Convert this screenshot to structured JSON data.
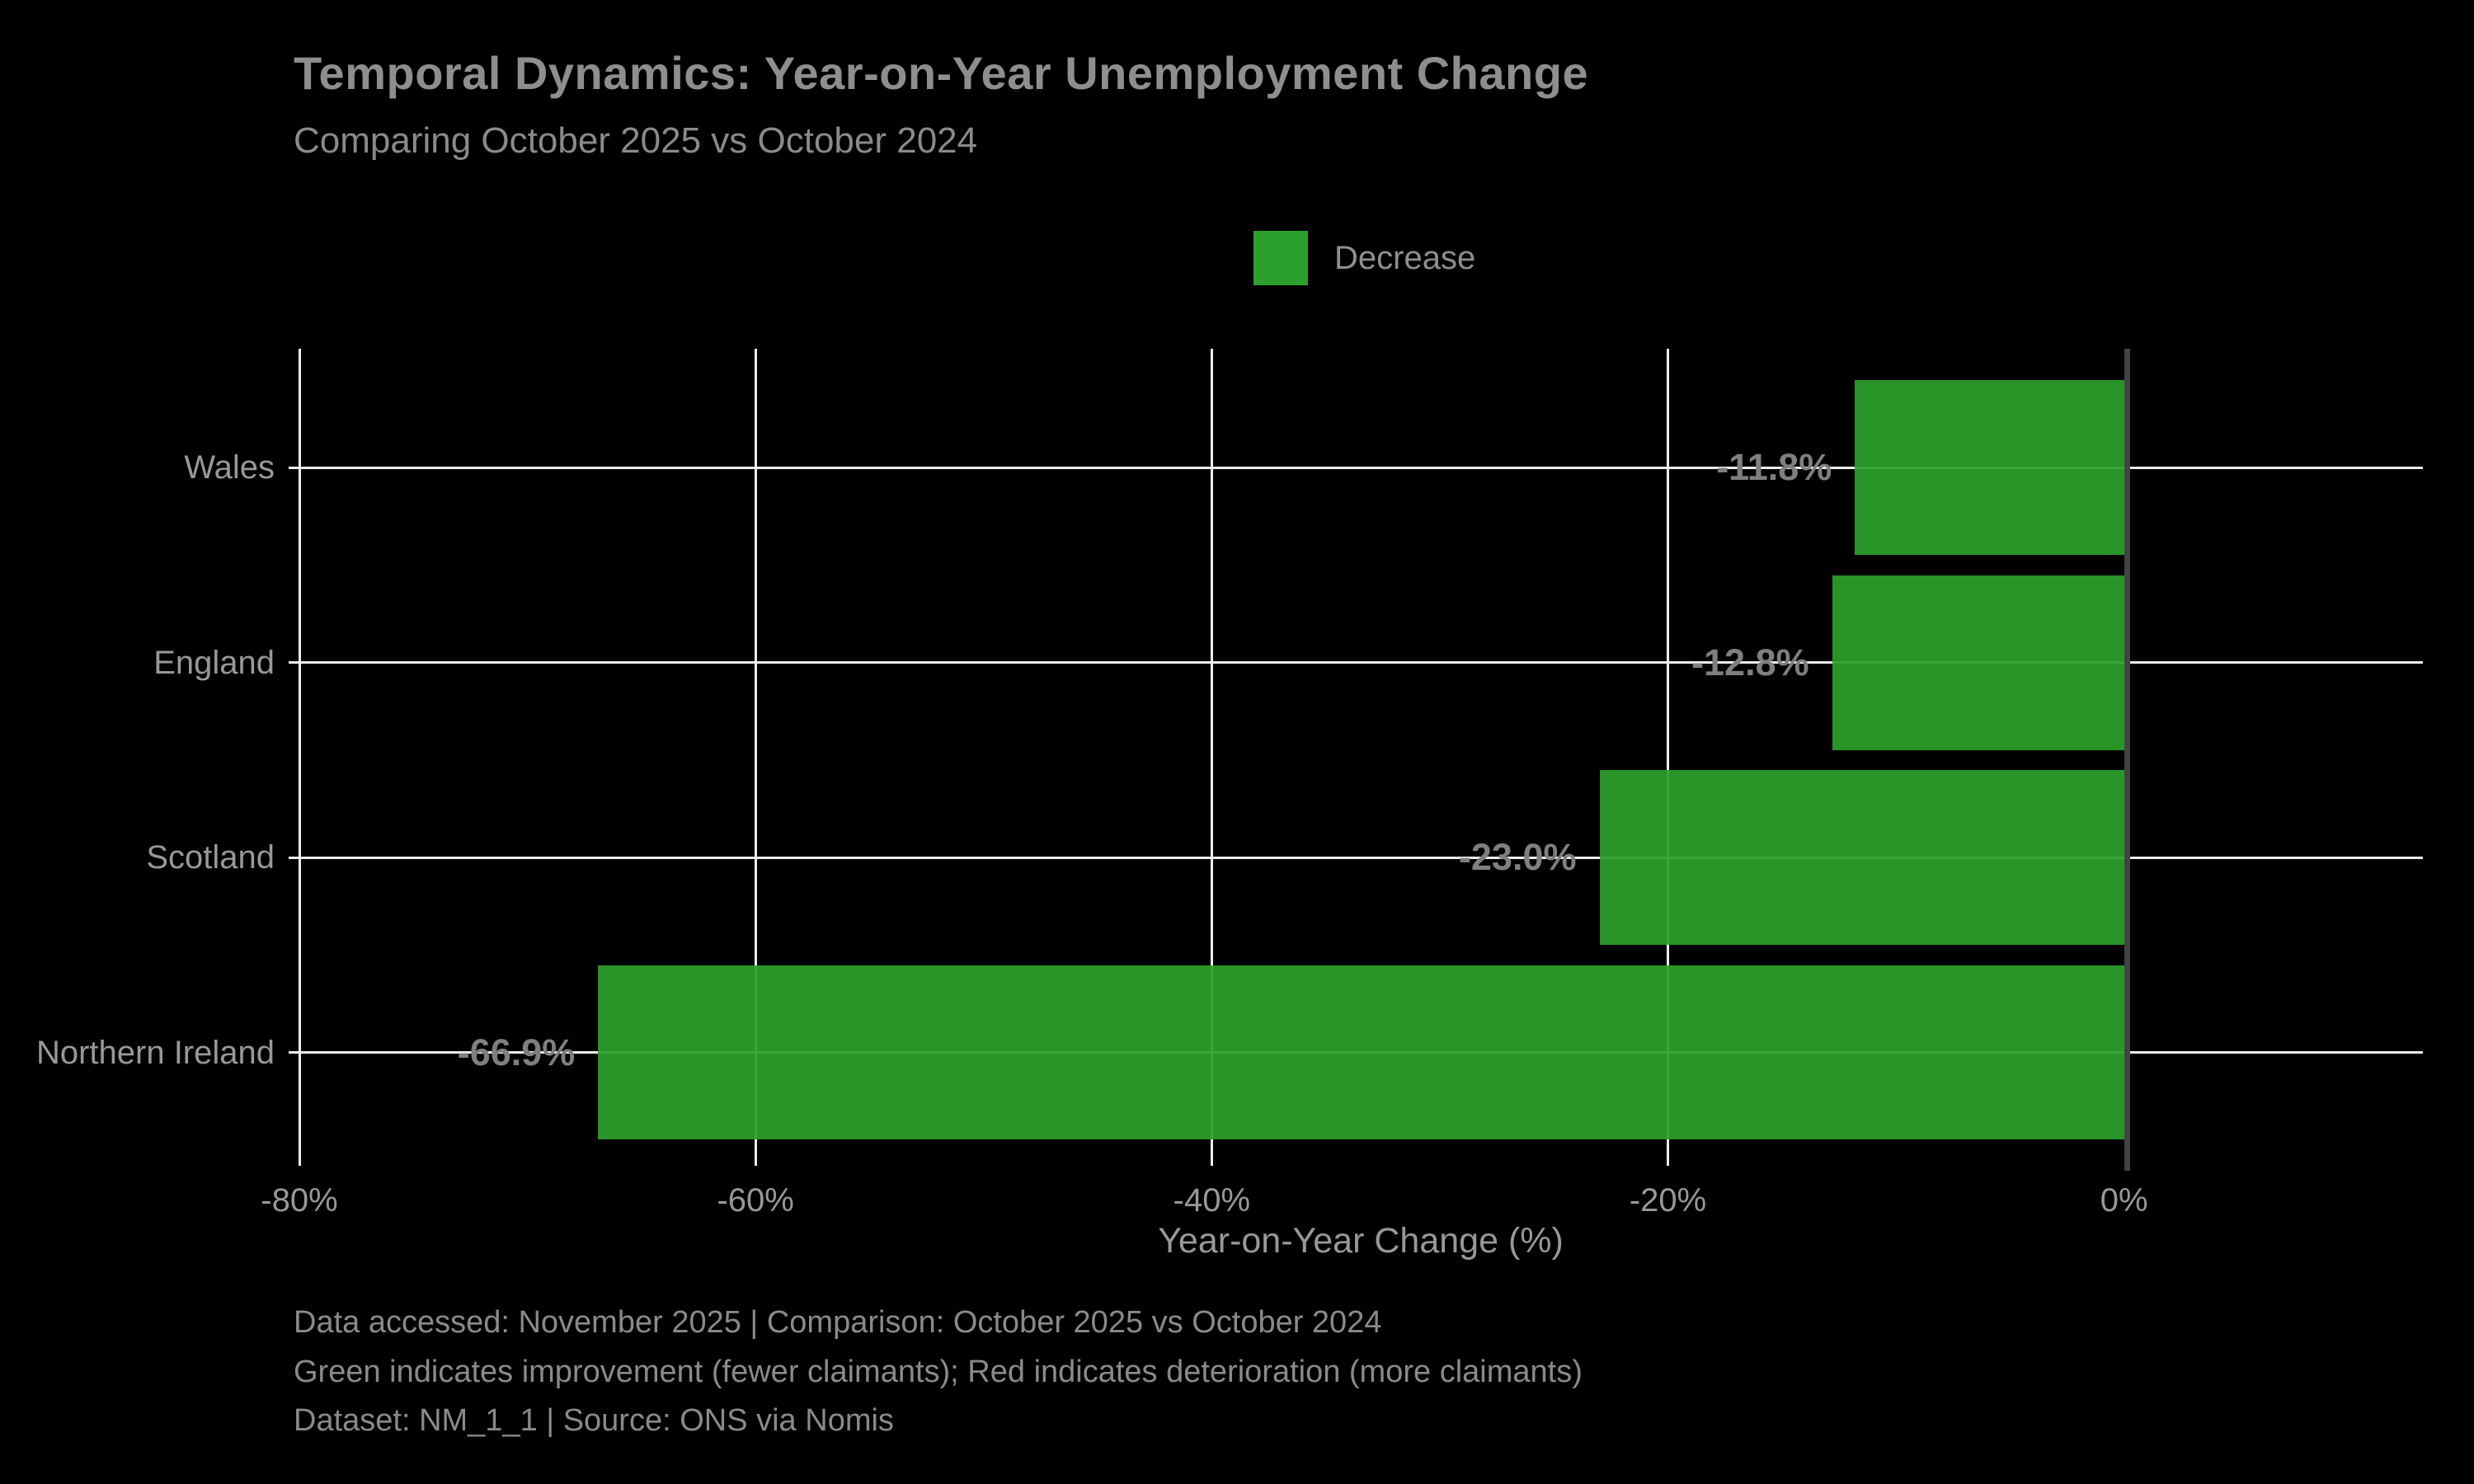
{
  "title": "Temporal Dynamics: Year-on-Year Unemployment Change",
  "subtitle": "Comparing October 2025 vs October 2024",
  "legend": {
    "items": [
      {
        "label": "Decrease",
        "color": "#2ca02c"
      }
    ]
  },
  "footer": {
    "line1": "Data accessed: November 2025 | Comparison: October 2025 vs October 2024",
    "line2": "Green indicates improvement (fewer claimants); Red indicates deterioration (more claimants)",
    "line3": "Dataset: NM_1_1 | Source: ONS via Nomis"
  },
  "colors": {
    "background": "#000000",
    "bar_green": "#2ca02c",
    "gridline": "#ececec",
    "zero_line": "#434343",
    "title_text": "#8e8e8e",
    "tick_text": "#989898",
    "value_text": "#7f7f7f"
  },
  "chart_data": {
    "type": "bar",
    "orientation": "horizontal",
    "title": "Temporal Dynamics: Year-on-Year Unemployment Change",
    "subtitle": "Comparing October 2025 vs October 2024",
    "categories": [
      "Wales",
      "England",
      "Scotland",
      "Northern Ireland"
    ],
    "values": [
      -11.8,
      -12.8,
      -23.0,
      -66.9
    ],
    "value_labels": [
      "-11.8%",
      "-12.8%",
      "-23.0%",
      "-66.9%"
    ],
    "series_name": "Decrease",
    "bar_color": "#2ca02c",
    "xlabel": "Year-on-Year Change (%)",
    "ylabel": "",
    "x_ticks": [
      {
        "v": -80,
        "label": "-80%"
      },
      {
        "v": -60,
        "label": "-60%"
      },
      {
        "v": -40,
        "label": "-40%"
      },
      {
        "v": -20,
        "label": "-20%"
      },
      {
        "v": 0,
        "label": "0%"
      }
    ],
    "xlim": [
      -80,
      13.1
    ],
    "ylim_units": [
      -0.61,
      3.45
    ],
    "bar_height_frac": 0.895,
    "grid": true,
    "legend_position": "upper center"
  }
}
